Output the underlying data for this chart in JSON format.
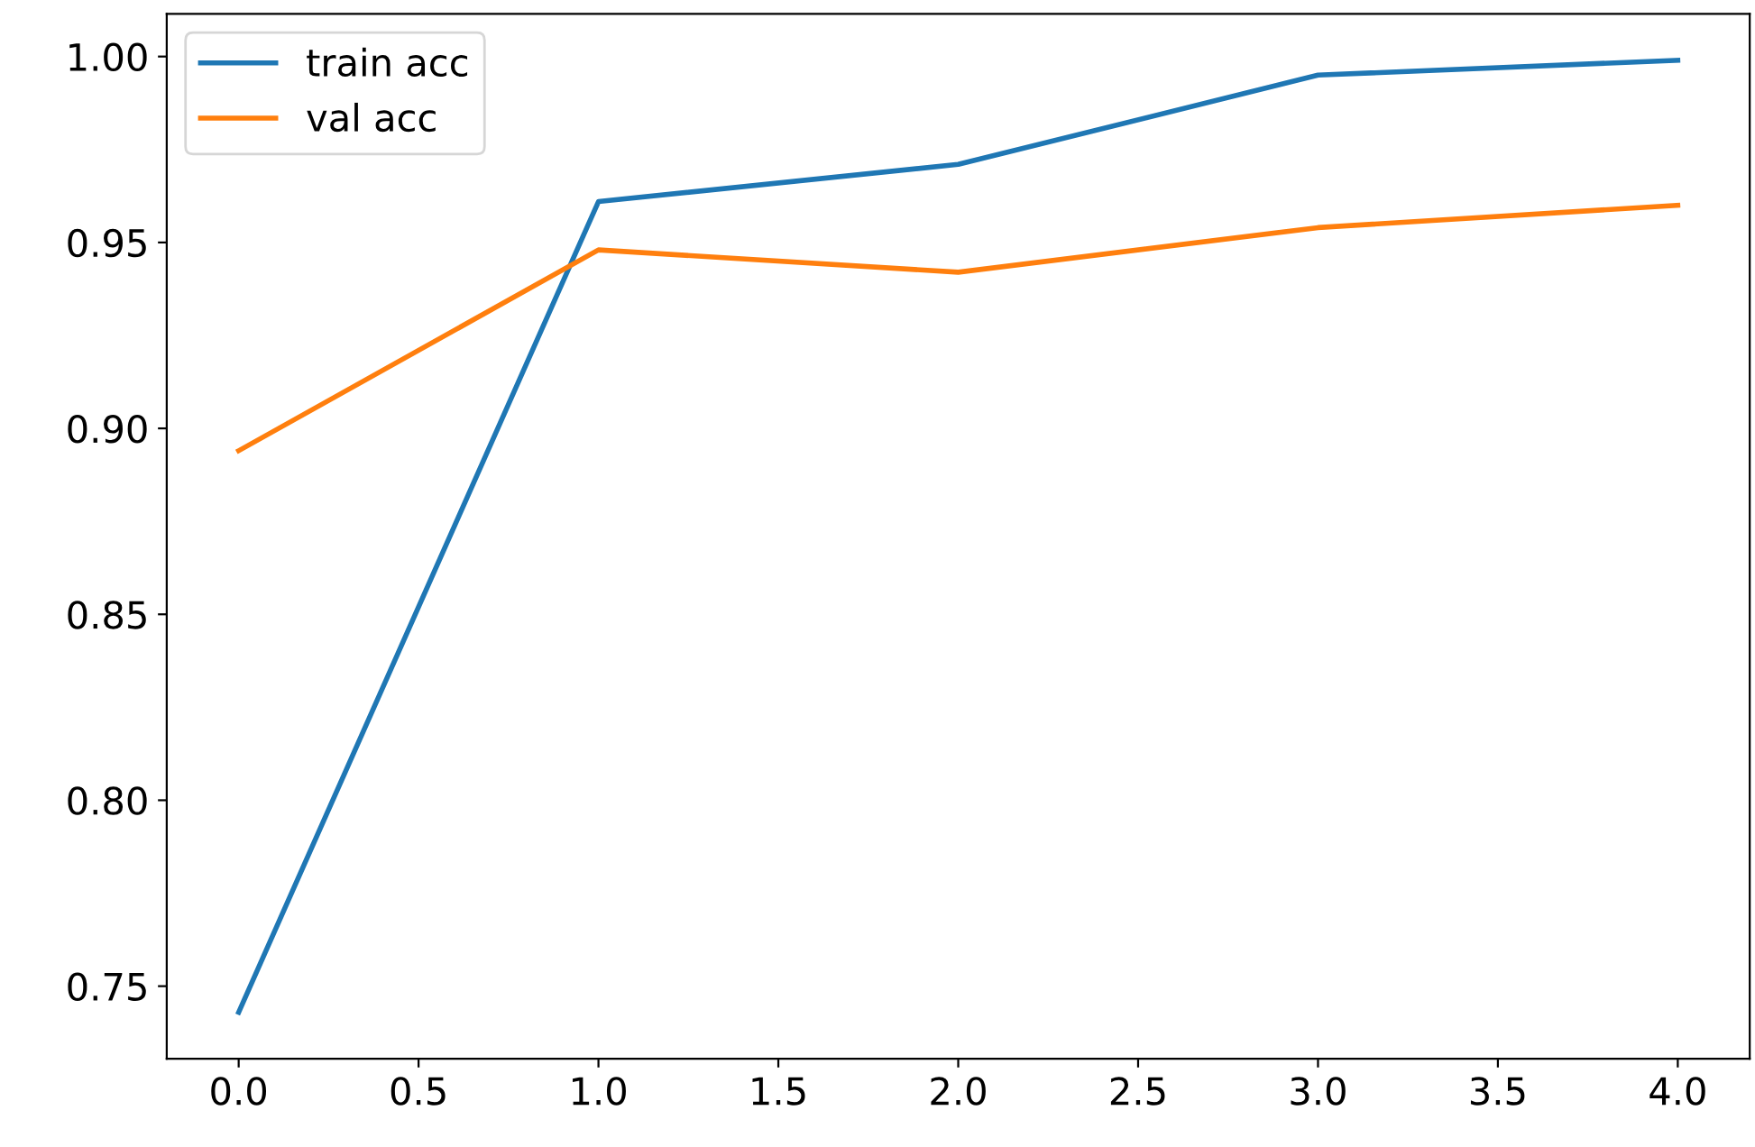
{
  "chart_data": {
    "type": "line",
    "x": [
      0,
      1,
      2,
      3,
      4
    ],
    "series": [
      {
        "name": "train acc",
        "color": "#1f77b4",
        "values": [
          0.743,
          0.961,
          0.971,
          0.995,
          0.999
        ]
      },
      {
        "name": "val acc",
        "color": "#ff7f0e",
        "values": [
          0.894,
          0.948,
          0.942,
          0.954,
          0.96
        ]
      }
    ],
    "xlim": [
      -0.2,
      4.2
    ],
    "xticks": [
      {
        "value": 0,
        "label": "0.0"
      },
      0.5,
      {
        "value": 1,
        "label": "1.0"
      },
      1.5,
      {
        "value": 2,
        "label": "2.0"
      },
      2.5,
      {
        "value": 3,
        "label": "3.0"
      },
      3.5,
      {
        "value": 4,
        "label": "4.0"
      }
    ],
    "ylim": [
      0.7305,
      1.0115
    ],
    "yticks": [
      0.75,
      {
        "value": 0.8,
        "label": "0.80"
      },
      {
        "value": 0.85,
        "label": "0.85"
      },
      {
        "value": 0.9,
        "label": "0.90"
      },
      0.95,
      {
        "value": 1.0,
        "label": "1.00"
      }
    ],
    "legend": "top left",
    "grid": false
  }
}
